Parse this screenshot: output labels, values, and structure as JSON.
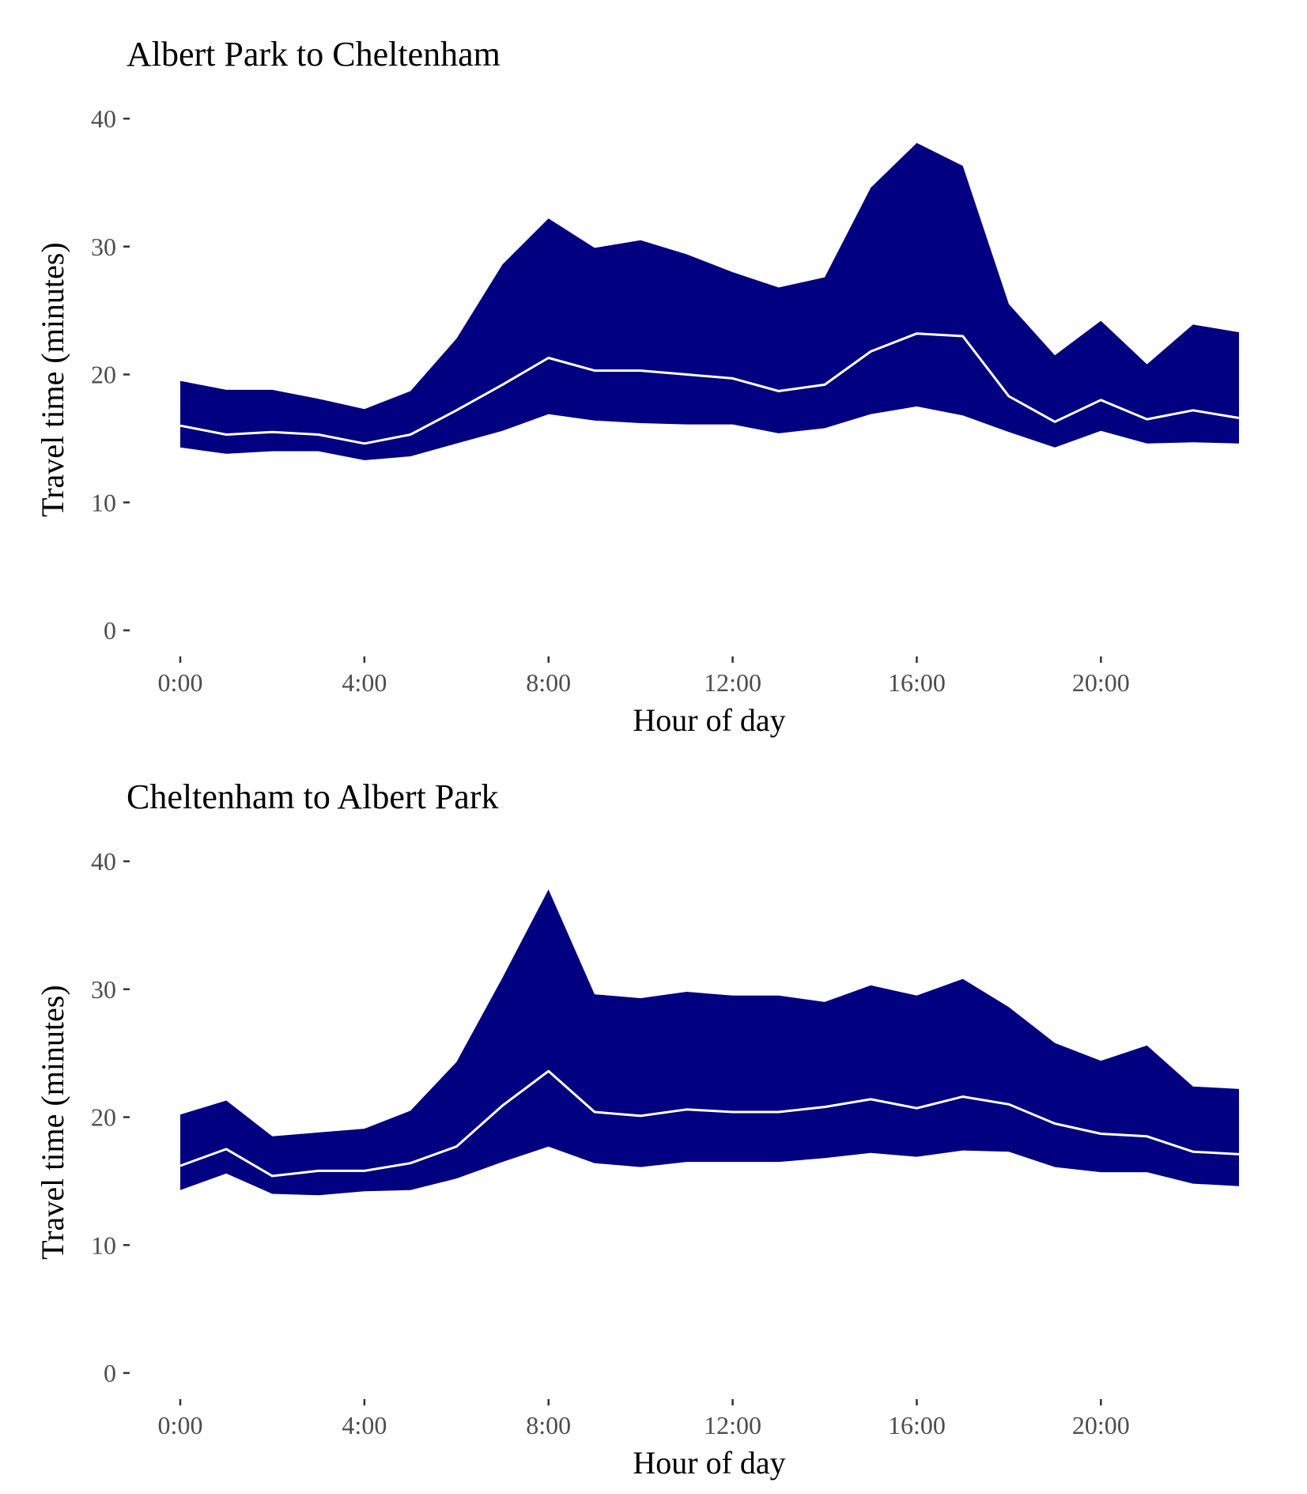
{
  "colors": {
    "band": "#000080",
    "median": "#ffffff",
    "tick_text": "#4d4d4d"
  },
  "chart_data": [
    {
      "type": "area",
      "title": "Albert Park to Cheltenham",
      "xlabel": "Hour of day",
      "ylabel": "Travel time (minutes)",
      "xlim": [
        0,
        23
      ],
      "ylim": [
        0,
        40
      ],
      "x_ticks": [
        0,
        4,
        8,
        12,
        16,
        20
      ],
      "x_tick_labels": [
        "0:00",
        "4:00",
        "8:00",
        "12:00",
        "16:00",
        "20:00"
      ],
      "y_ticks": [
        0,
        10,
        20,
        30,
        40
      ],
      "y_tick_labels": [
        "0",
        "10",
        "20",
        "30",
        "40"
      ],
      "grid": false,
      "legend": "none",
      "x": [
        0,
        1,
        2,
        3,
        4,
        5,
        6,
        7,
        8,
        9,
        10,
        11,
        12,
        13,
        14,
        15,
        16,
        17,
        18,
        19,
        20,
        21,
        22,
        23
      ],
      "series": [
        {
          "role": "upper",
          "values": [
            19.5,
            18.8,
            18.8,
            18.1,
            17.3,
            18.7,
            22.8,
            28.6,
            32.2,
            29.9,
            30.5,
            29.4,
            28.0,
            26.8,
            27.6,
            34.6,
            38.1,
            36.3,
            25.5,
            21.5,
            24.2,
            20.8,
            23.9,
            23.3
          ]
        },
        {
          "role": "median",
          "values": [
            16.0,
            15.3,
            15.5,
            15.3,
            14.6,
            15.3,
            17.2,
            19.2,
            21.3,
            20.3,
            20.3,
            20.0,
            19.7,
            18.7,
            19.2,
            21.8,
            23.2,
            23.0,
            18.3,
            16.3,
            18.0,
            16.5,
            17.2,
            16.6
          ]
        },
        {
          "role": "lower",
          "values": [
            14.3,
            13.8,
            14.0,
            14.0,
            13.3,
            13.6,
            14.6,
            15.6,
            16.9,
            16.4,
            16.2,
            16.1,
            16.1,
            15.4,
            15.8,
            16.9,
            17.5,
            16.8,
            15.5,
            14.3,
            15.6,
            14.6,
            14.7,
            14.6
          ]
        }
      ]
    },
    {
      "type": "area",
      "title": "Cheltenham to Albert Park",
      "xlabel": "Hour of day",
      "ylabel": "Travel time (minutes)",
      "xlim": [
        0,
        23
      ],
      "ylim": [
        0,
        40
      ],
      "x_ticks": [
        0,
        4,
        8,
        12,
        16,
        20
      ],
      "x_tick_labels": [
        "0:00",
        "4:00",
        "8:00",
        "12:00",
        "16:00",
        "20:00"
      ],
      "y_ticks": [
        0,
        10,
        20,
        30,
        40
      ],
      "y_tick_labels": [
        "0",
        "10",
        "20",
        "30",
        "40"
      ],
      "grid": false,
      "legend": "none",
      "x": [
        0,
        1,
        2,
        3,
        4,
        5,
        6,
        7,
        8,
        9,
        10,
        11,
        12,
        13,
        14,
        15,
        16,
        17,
        18,
        19,
        20,
        21,
        22,
        23
      ],
      "series": [
        {
          "role": "upper",
          "values": [
            20.2,
            21.3,
            18.5,
            18.8,
            19.1,
            20.5,
            24.3,
            30.9,
            37.8,
            29.6,
            29.3,
            29.8,
            29.5,
            29.5,
            29.0,
            30.3,
            29.5,
            30.8,
            28.6,
            25.8,
            24.4,
            25.6,
            22.4,
            22.2
          ]
        },
        {
          "role": "median",
          "values": [
            16.2,
            17.5,
            15.4,
            15.8,
            15.8,
            16.4,
            17.7,
            20.9,
            23.6,
            20.4,
            20.1,
            20.6,
            20.4,
            20.4,
            20.8,
            21.4,
            20.7,
            21.6,
            21.0,
            19.5,
            18.7,
            18.5,
            17.3,
            17.1
          ]
        },
        {
          "role": "lower",
          "values": [
            14.3,
            15.6,
            14.0,
            13.9,
            14.2,
            14.3,
            15.2,
            16.5,
            17.7,
            16.4,
            16.1,
            16.5,
            16.5,
            16.5,
            16.8,
            17.2,
            16.9,
            17.4,
            17.3,
            16.1,
            15.7,
            15.7,
            14.8,
            14.6
          ]
        }
      ]
    }
  ]
}
